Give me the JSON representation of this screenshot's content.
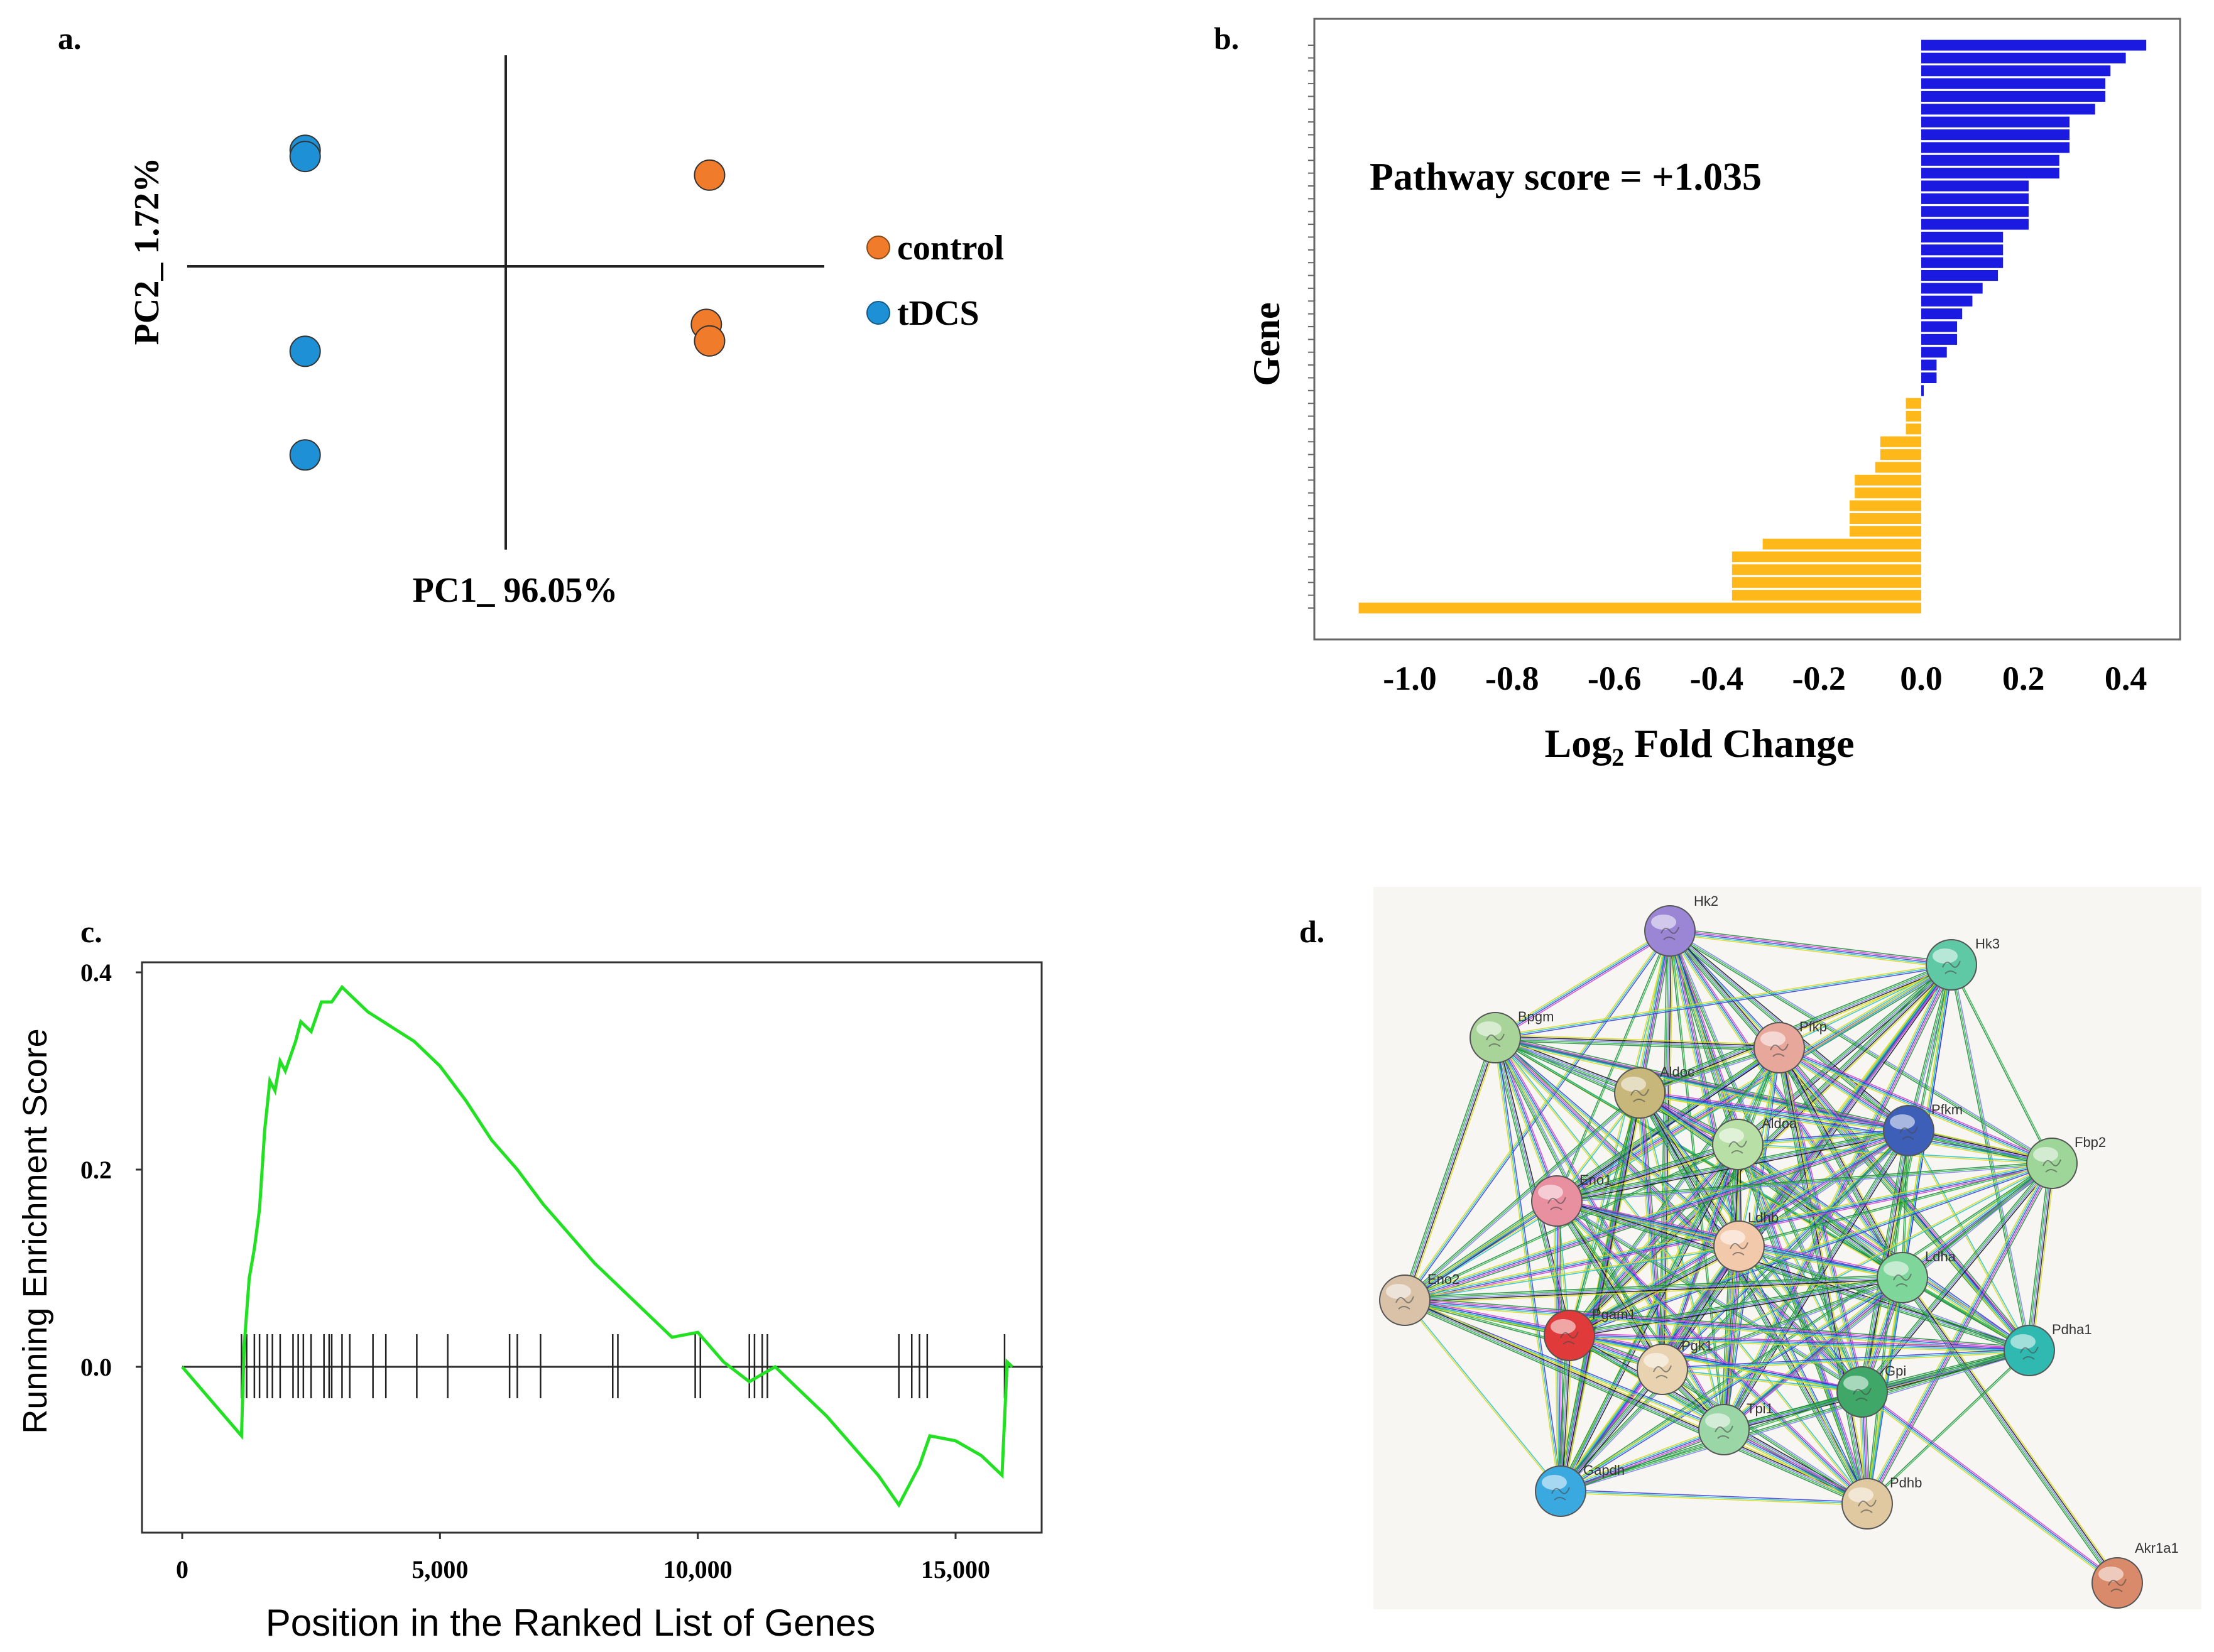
{
  "panels": {
    "a": {
      "label": "a.",
      "chart_data": {
        "type": "scatter",
        "title": "",
        "xlabel": "PC1_ 96.05%",
        "ylabel": "PC2_ 1.72%",
        "xlim": [
          -1,
          1
        ],
        "ylim": [
          -1,
          1
        ],
        "series": [
          {
            "name": "control",
            "color": "#f07b2a",
            "points": [
              [
                0.63,
                0.44
              ],
              [
                0.62,
                -0.28
              ],
              [
                0.63,
                -0.36
              ]
            ]
          },
          {
            "name": "tDCS",
            "color": "#1e91d6",
            "points": [
              [
                -0.62,
                0.56
              ],
              [
                -0.62,
                0.53
              ],
              [
                -0.62,
                -0.41
              ],
              [
                -0.62,
                -0.91
              ]
            ]
          }
        ],
        "legend": [
          "control",
          "tDCS"
        ],
        "legend_position": "right"
      }
    },
    "b": {
      "label": "b.",
      "annotation": "Pathway score = +1.035",
      "chart_data": {
        "type": "bar",
        "orientation": "horizontal",
        "title": "",
        "xlabel_main": "Log",
        "xlabel_sub": "2",
        "xlabel_rest": " Fold Change",
        "ylabel": "Gene",
        "xlim": [
          -1.17,
          0.52
        ],
        "x_ticks": [
          -1.0,
          -0.8,
          -0.6,
          -0.4,
          -0.2,
          0.0,
          0.2,
          0.4
        ],
        "x_tick_labels": [
          "-1.0",
          "-0.8",
          "-0.6",
          "-0.4",
          "-0.2",
          "0.0",
          "0.2",
          "0.4"
        ],
        "positive_color": "#1a1ae0",
        "negative_color": "#ffb81a",
        "values": [
          0.44,
          0.4,
          0.37,
          0.36,
          0.36,
          0.34,
          0.29,
          0.29,
          0.29,
          0.27,
          0.27,
          0.21,
          0.21,
          0.21,
          0.21,
          0.16,
          0.16,
          0.16,
          0.15,
          0.12,
          0.1,
          0.08,
          0.07,
          0.07,
          0.05,
          0.03,
          0.03,
          0.005,
          -0.03,
          -0.03,
          -0.03,
          -0.08,
          -0.08,
          -0.09,
          -0.13,
          -0.13,
          -0.14,
          -0.14,
          -0.14,
          -0.31,
          -0.37,
          -0.37,
          -0.37,
          -0.37,
          -1.1
        ]
      }
    },
    "c": {
      "label": "c.",
      "chart_data": {
        "type": "line",
        "title": "",
        "xlabel": "Position in the Ranked List of Genes",
        "ylabel": "Running Enrichment Score",
        "xlim": [
          -600,
          16800
        ],
        "ylim": [
          -0.17,
          0.41
        ],
        "x_ticks": [
          0,
          5000,
          10000,
          15000
        ],
        "x_tick_labels": [
          "0",
          "5,000",
          "10,000",
          "15,000"
        ],
        "y_ticks": [
          0.0,
          0.2,
          0.4
        ],
        "y_tick_labels": [
          "0.0",
          "0.2",
          "0.4"
        ],
        "line_color": "#22e022",
        "x": [
          0,
          1150,
          1200,
          1300,
          1400,
          1500,
          1600,
          1700,
          1800,
          1900,
          2000,
          2200,
          2300,
          2500,
          2700,
          2900,
          3100,
          3300,
          3600,
          3900,
          4200,
          4500,
          5000,
          5500,
          6000,
          6500,
          7000,
          7500,
          8000,
          8500,
          9000,
          9500,
          10000,
          10500,
          11000,
          11500,
          12000,
          12500,
          13000,
          13500,
          13900,
          14100,
          14300,
          14500,
          15000,
          15500,
          15900,
          16000,
          16100
        ],
        "y": [
          0.0,
          -0.07,
          0.02,
          0.09,
          0.12,
          0.16,
          0.24,
          0.29,
          0.28,
          0.31,
          0.3,
          0.33,
          0.35,
          0.34,
          0.37,
          0.37,
          0.385,
          0.375,
          0.36,
          0.35,
          0.34,
          0.33,
          0.305,
          0.27,
          0.23,
          0.2,
          0.165,
          0.135,
          0.105,
          0.08,
          0.055,
          0.03,
          0.035,
          0.005,
          -0.015,
          0.0,
          -0.025,
          -0.05,
          -0.08,
          -0.11,
          -0.14,
          -0.12,
          -0.1,
          -0.07,
          -0.075,
          -0.09,
          -0.11,
          0.005,
          0.0
        ],
        "hits": [
          1150,
          1250,
          1400,
          1500,
          1650,
          1750,
          1900,
          2150,
          2250,
          2350,
          2500,
          2750,
          2850,
          2900,
          3100,
          3250,
          3700,
          3950,
          4550,
          5150,
          6350,
          6500,
          6950,
          8350,
          8450,
          9950,
          10050,
          11000,
          11100,
          11250,
          11350,
          13900,
          14150,
          14300,
          14450,
          15950
        ]
      }
    },
    "d": {
      "label": "d.",
      "network": {
        "nodes": [
          {
            "id": "Hk2",
            "label": "Hk2",
            "color": "#9b86d6"
          },
          {
            "id": "Hk3",
            "label": "Hk3",
            "color": "#5fc9a6"
          },
          {
            "id": "Bpgm",
            "label": "Bpgm",
            "color": "#a8d49a"
          },
          {
            "id": "Pfkp",
            "label": "Pfkp",
            "color": "#e7a79b"
          },
          {
            "id": "Aldoc",
            "label": "Aldoc",
            "color": "#c8b77a"
          },
          {
            "id": "Aldoa",
            "label": "Aldoa",
            "color": "#b8e0a6"
          },
          {
            "id": "Pfkm",
            "label": "Pfkm",
            "color": "#3d5fb8"
          },
          {
            "id": "Fbp2",
            "label": "Fbp2",
            "color": "#9ed69a"
          },
          {
            "id": "Eno1",
            "label": "Eno1",
            "color": "#e88fa0"
          },
          {
            "id": "Ldhb",
            "label": "Ldhb",
            "color": "#f3c9ac"
          },
          {
            "id": "Ldha",
            "label": "Ldha",
            "color": "#7fd69a"
          },
          {
            "id": "Eno2",
            "label": "Eno2",
            "color": "#d9c2a8"
          },
          {
            "id": "Pgam1",
            "label": "Pgam1",
            "color": "#e03a3a"
          },
          {
            "id": "Pgk1",
            "label": "Pgk1",
            "color": "#e8d2b0"
          },
          {
            "id": "Pdha1",
            "label": "Pdha1",
            "color": "#2fb9b0"
          },
          {
            "id": "Gpi",
            "label": "Gpi",
            "color": "#3fa868"
          },
          {
            "id": "Tpi1",
            "label": "Tpi1",
            "color": "#9bd6a6"
          },
          {
            "id": "Gapdh",
            "label": "Gapdh",
            "color": "#3aa9e0"
          },
          {
            "id": "Pdhb",
            "label": "Pdhb",
            "color": "#e0c9a0"
          },
          {
            "id": "Akr1a1",
            "label": "Akr1a1",
            "color": "#d98a6a"
          }
        ],
        "edge_colors": [
          "#2db34a",
          "#1a8a3a",
          "#d33dd3",
          "#3a3ad6",
          "#22c1c8",
          "#d8d81a",
          "#111111",
          "#7b7bf0"
        ]
      }
    }
  }
}
